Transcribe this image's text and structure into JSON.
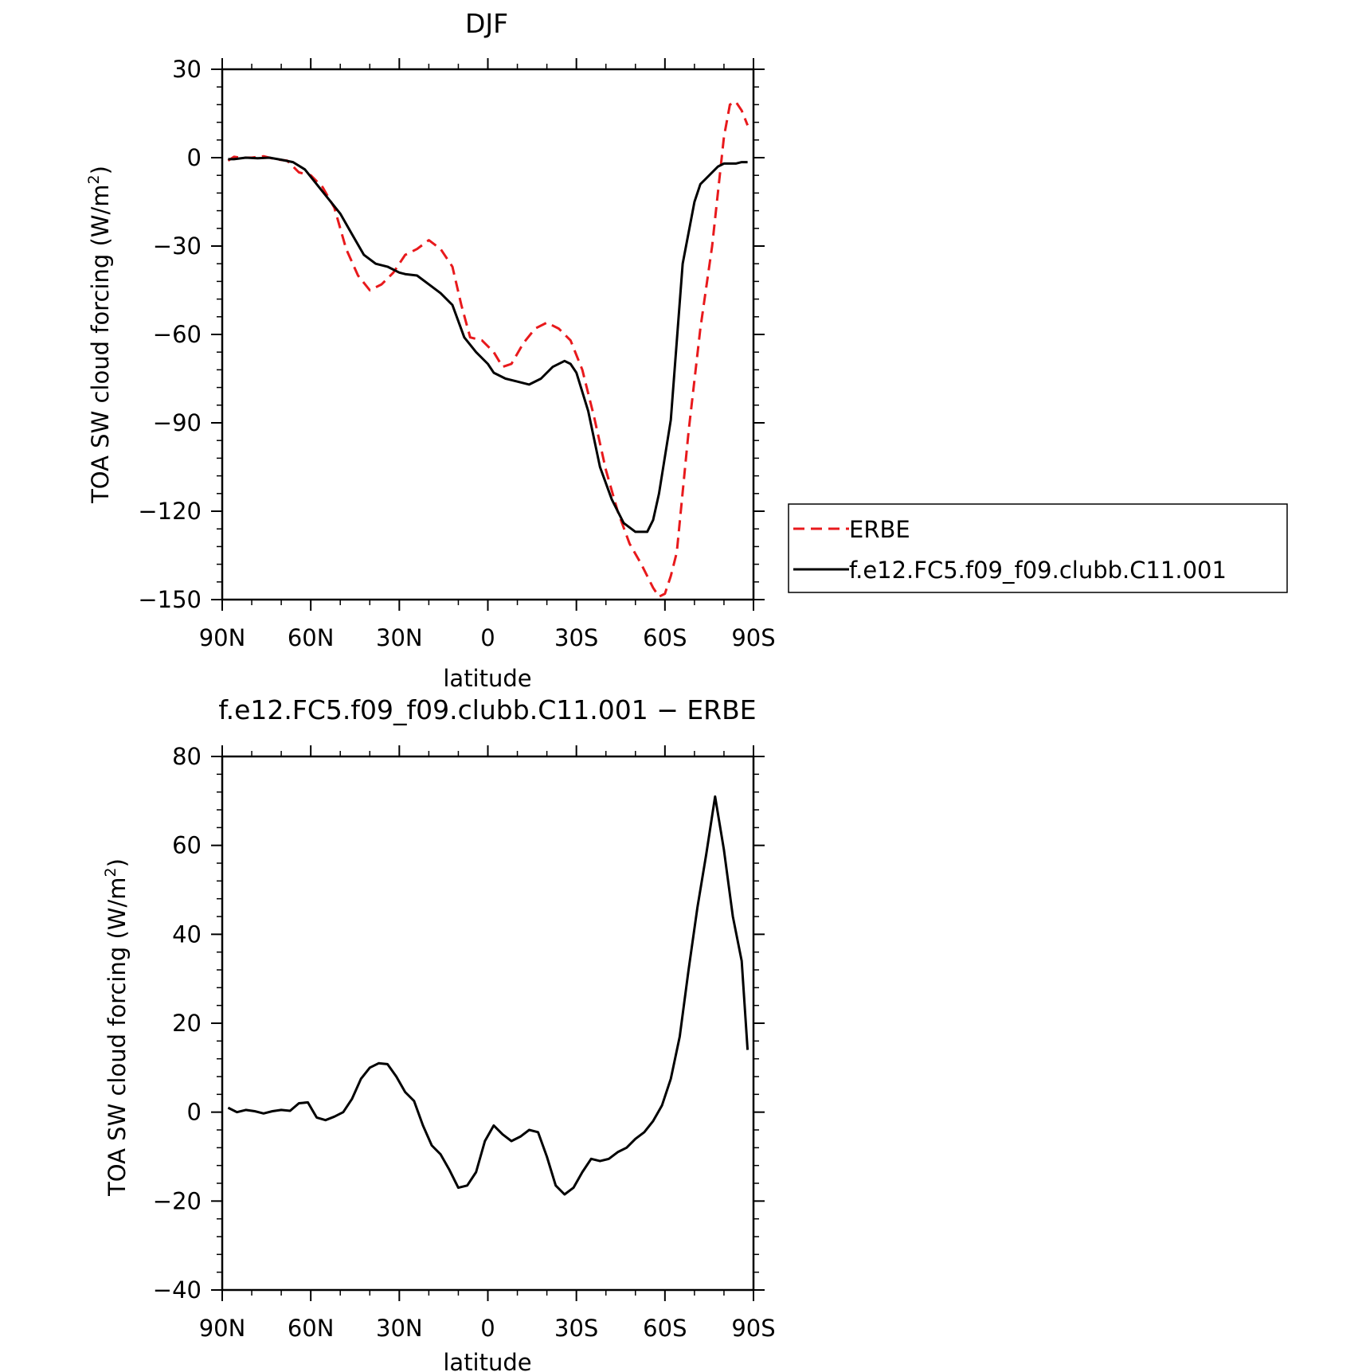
{
  "chart_data": [
    {
      "type": "line",
      "title": "DJF",
      "xlabel": "latitude",
      "ylabel": "TOA SW cloud forcing (W/m",
      "ylabel_sup": "2",
      "ylabel_close": ")",
      "xlim": [
        90,
        -90
      ],
      "ylim": [
        -150,
        30
      ],
      "x_ticks": [
        90,
        60,
        30,
        0,
        -30,
        -60,
        -90
      ],
      "x_tick_labels": [
        "90N",
        "60N",
        "30N",
        "0",
        "30S",
        "60S",
        "90S"
      ],
      "y_ticks": [
        30,
        0,
        -30,
        -60,
        -90,
        -120,
        -150
      ],
      "y_tick_labels": [
        "30",
        "0",
        "−30",
        "−60",
        "−90",
        "−120",
        "−150"
      ],
      "legend_position": "right",
      "series": [
        {
          "name": "ERBE",
          "color": "#e8191c",
          "dash": "dashed",
          "x": [
            88,
            86,
            84,
            80,
            76,
            72,
            68,
            64,
            60,
            56,
            52,
            48,
            44,
            40,
            36,
            32,
            28,
            24,
            20,
            16,
            12,
            9,
            6,
            2,
            -2,
            -5,
            -8,
            -12,
            -16,
            -20,
            -24,
            -28,
            -32,
            -36,
            -40,
            -44,
            -48,
            -52,
            -56,
            -58,
            -60,
            -62,
            -64,
            -68,
            -72,
            -76,
            -80,
            -82,
            -84,
            -86,
            -88
          ],
          "y": [
            -1,
            0.3,
            0,
            0,
            0.5,
            -0.5,
            -1,
            -5,
            -6,
            -10,
            -17,
            -31,
            -40,
            -45,
            -43,
            -39,
            -33,
            -31,
            -28,
            -31,
            -37,
            -50,
            -61,
            -62,
            -66,
            -71,
            -70,
            -63,
            -58,
            -56,
            -58,
            -62,
            -72,
            -88,
            -106,
            -120,
            -131,
            -138,
            -146,
            -149,
            -148,
            -142,
            -134,
            -93,
            -58,
            -30,
            7,
            18,
            19,
            16,
            11
          ]
        },
        {
          "name": "f.e12.FC5.f09_f09.clubb.C11.001",
          "color": "#000000",
          "dash": "solid",
          "x": [
            88,
            86,
            82,
            78,
            74,
            70,
            66,
            62,
            58,
            54,
            50,
            46,
            42,
            38,
            34,
            30,
            28,
            24,
            20,
            16,
            12,
            8,
            4,
            0,
            -2,
            -6,
            -10,
            -14,
            -18,
            -22,
            -26,
            -28,
            -30,
            -34,
            -38,
            -42,
            -46,
            -50,
            -54,
            -56,
            -58,
            -62,
            -66,
            -70,
            -72,
            -74,
            -78,
            -80,
            -84,
            -86,
            -88
          ],
          "y": [
            -0.5,
            -0.5,
            0,
            -0.2,
            0,
            -0.7,
            -1.5,
            -4,
            -9,
            -14,
            -19,
            -26,
            -33,
            -36,
            -37,
            -39,
            -39.5,
            -40,
            -43,
            -46,
            -50,
            -61,
            -66,
            -70,
            -73,
            -75,
            -76,
            -77,
            -75,
            -71,
            -69,
            -70,
            -73,
            -86,
            -105,
            -116,
            -124,
            -127,
            -127,
            -123,
            -114,
            -89,
            -36,
            -15,
            -9,
            -7,
            -3,
            -2,
            -2,
            -1.5,
            -1.5
          ]
        }
      ]
    },
    {
      "type": "line",
      "title": "f.e12.FC5.f09_f09.clubb.C11.001 − ERBE",
      "xlabel": "latitude",
      "ylabel": "TOA SW cloud forcing (W/m",
      "ylabel_sup": "2",
      "ylabel_close": ")",
      "xlim": [
        90,
        -90
      ],
      "ylim": [
        -40,
        80
      ],
      "x_ticks": [
        90,
        60,
        30,
        0,
        -30,
        -60,
        -90
      ],
      "x_tick_labels": [
        "90N",
        "60N",
        "30N",
        "0",
        "30S",
        "60S",
        "90S"
      ],
      "y_ticks": [
        80,
        60,
        40,
        20,
        0,
        -20,
        -40
      ],
      "y_tick_labels": [
        "80",
        "60",
        "40",
        "20",
        "0",
        "−20",
        "−40"
      ],
      "series": [
        {
          "color": "#000000",
          "dash": "solid",
          "x": [
            88,
            85,
            82,
            79,
            76,
            73,
            70,
            67,
            64,
            61,
            58,
            55,
            52,
            49,
            46,
            43,
            40,
            37,
            34,
            31,
            28,
            25,
            22,
            19,
            16,
            13,
            10,
            7,
            4,
            1,
            -2,
            -5,
            -8,
            -11,
            -14,
            -17,
            -20,
            -23,
            -26,
            -29,
            -32,
            -35,
            -38,
            -41,
            -44,
            -47,
            -50,
            -53,
            -56,
            -59,
            -62,
            -65,
            -68,
            -71,
            -74,
            -77,
            -80,
            -83,
            -86,
            -88
          ],
          "y": [
            1,
            0,
            0.5,
            0.2,
            -0.3,
            0.2,
            0.5,
            0.3,
            2,
            2.2,
            -1.2,
            -1.8,
            -1,
            0,
            3,
            7.5,
            10,
            11,
            10.8,
            8,
            4.5,
            2.5,
            -3,
            -7.5,
            -9.5,
            -13,
            -17,
            -16.5,
            -13.5,
            -6.5,
            -3,
            -5,
            -6.5,
            -5.5,
            -4,
            -4.5,
            -10,
            -16.5,
            -18.5,
            -17,
            -13.5,
            -10.5,
            -11,
            -10.5,
            -9,
            -8,
            -6,
            -4.5,
            -2,
            1.5,
            7.5,
            17,
            32,
            46,
            58,
            71,
            59,
            44,
            34,
            14
          ]
        }
      ]
    }
  ]
}
